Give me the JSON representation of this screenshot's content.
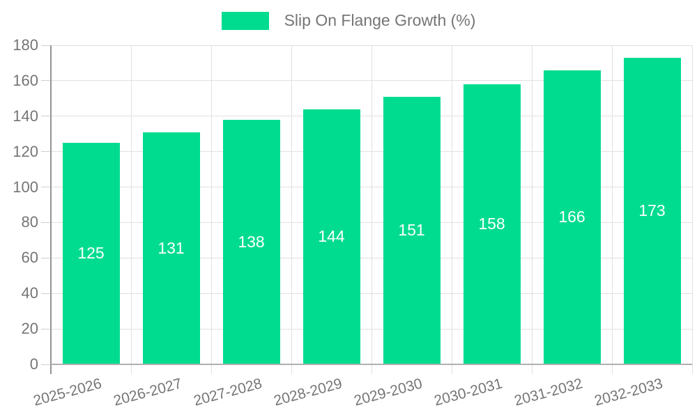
{
  "legend": {
    "label": "Slip On Flange Growth (%)"
  },
  "chart_data": {
    "type": "bar",
    "title": "Slip On Flange Growth (%)",
    "series_name": "Slip On Flange Growth (%)",
    "categories": [
      "2025-2026",
      "2026-2027",
      "2027-2028",
      "2028-2029",
      "2029-2030",
      "2030-2031",
      "2031-2032",
      "2032-2033"
    ],
    "values": [
      125,
      131,
      138,
      144,
      151,
      158,
      166,
      173
    ],
    "xlabel": "",
    "ylabel": "",
    "ylim": [
      0,
      180
    ],
    "ytick_step": 20,
    "yticks": [
      0,
      20,
      40,
      60,
      80,
      100,
      120,
      140,
      160,
      180
    ],
    "grid": true,
    "legend_position": "top",
    "bar_color": "#00dc8f",
    "bar_label_color": "#ffffff",
    "axis_text_color": "#757575",
    "grid_color": "#e0e0e0"
  }
}
